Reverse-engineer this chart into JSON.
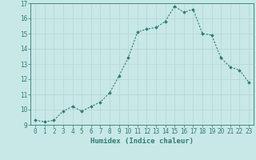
{
  "x": [
    0,
    1,
    2,
    3,
    4,
    5,
    6,
    7,
    8,
    9,
    10,
    11,
    12,
    13,
    14,
    15,
    16,
    17,
    18,
    19,
    20,
    21,
    22,
    23
  ],
  "y": [
    9.3,
    9.2,
    9.3,
    9.9,
    10.2,
    9.9,
    10.2,
    10.5,
    11.1,
    12.2,
    13.4,
    15.1,
    15.3,
    15.4,
    15.8,
    16.8,
    16.4,
    16.6,
    15.0,
    14.9,
    13.4,
    12.8,
    12.6,
    11.8
  ],
  "line_color": "#2e7d6e",
  "marker": "D",
  "marker_size": 1.8,
  "bg_color": "#c8e8e8",
  "grid_color": "#b8d8d8",
  "xlabel": "Humidex (Indice chaleur)",
  "ylim": [
    9,
    17
  ],
  "xlim": [
    -0.5,
    23.5
  ],
  "yticks": [
    9,
    10,
    11,
    12,
    13,
    14,
    15,
    16,
    17
  ],
  "xticks": [
    0,
    1,
    2,
    3,
    4,
    5,
    6,
    7,
    8,
    9,
    10,
    11,
    12,
    13,
    14,
    15,
    16,
    17,
    18,
    19,
    20,
    21,
    22,
    23
  ],
  "tick_color": "#2e7d6e",
  "label_color": "#2e7d6e",
  "font_size_label": 6.5,
  "font_size_tick": 5.5,
  "linewidth": 0.8
}
